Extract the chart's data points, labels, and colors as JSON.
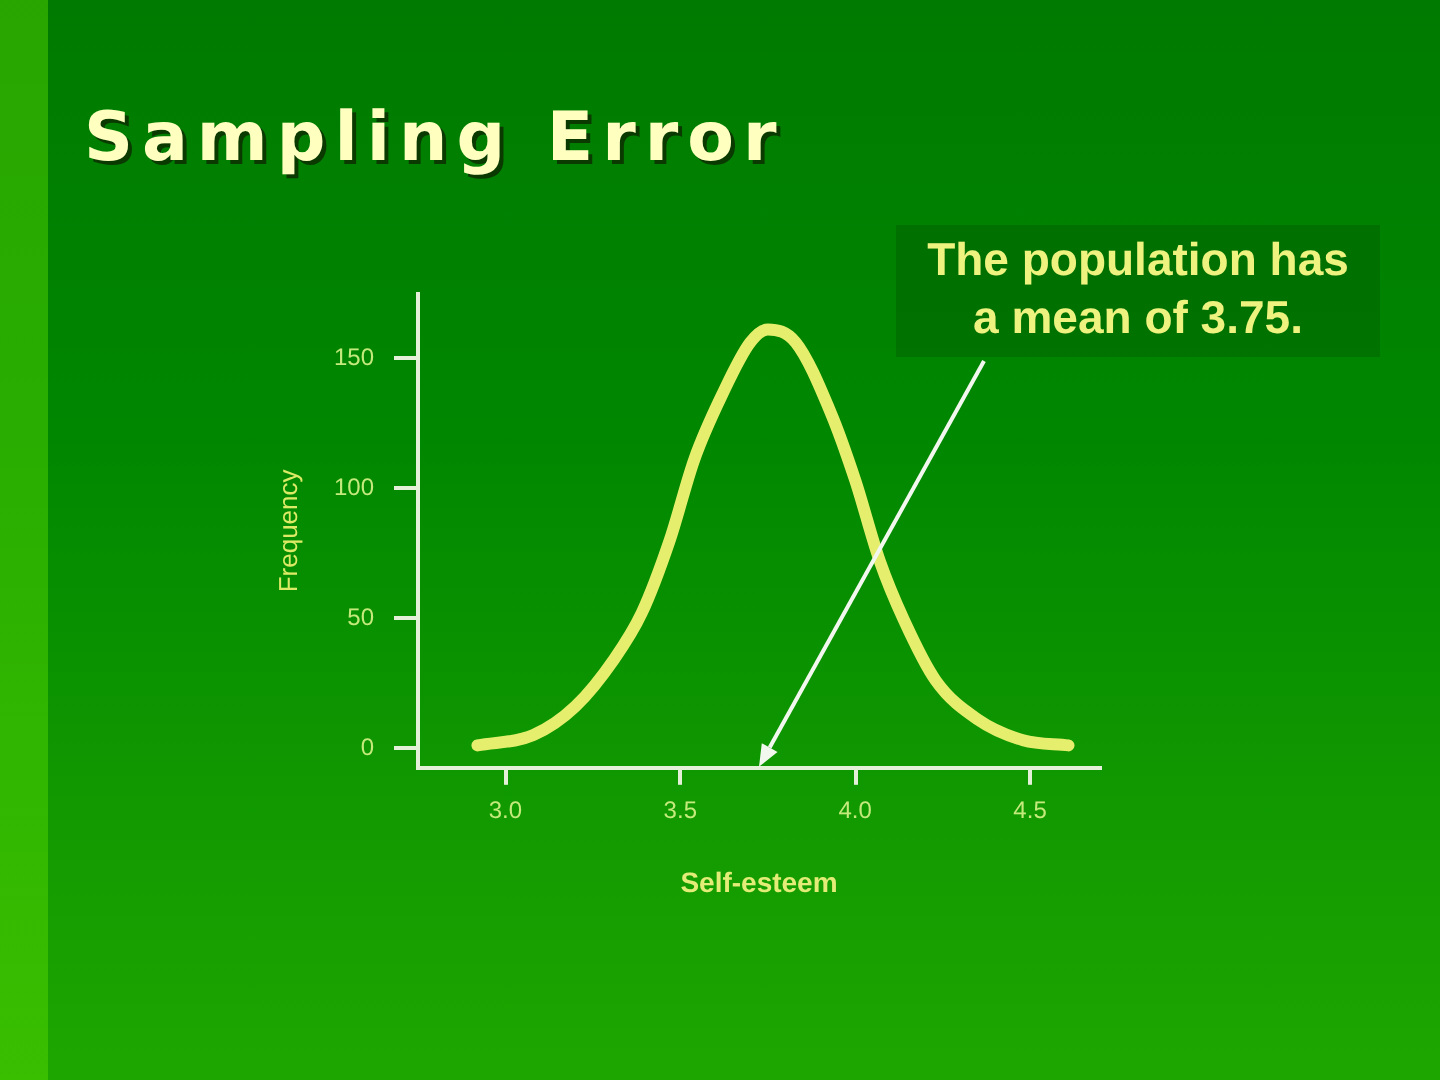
{
  "chart_data": {
    "type": "line",
    "title": "Sampling Error",
    "xlabel": "Self-esteem",
    "ylabel": "Frequency",
    "x": [
      2.92,
      3.08,
      3.2,
      3.31,
      3.39,
      3.47,
      3.54,
      3.62,
      3.7,
      3.75,
      3.83,
      3.93,
      4.0,
      4.07,
      4.14,
      4.23,
      4.35,
      4.48,
      4.61
    ],
    "series": [
      {
        "color": "#e6ee6e",
        "values": [
          1,
          5,
          16,
          34,
          52,
          80,
          111,
          136,
          156,
          161,
          156,
          129,
          103,
          72,
          49,
          26,
          11,
          3,
          1
        ]
      }
    ],
    "xlim": [
      2.75,
      4.7
    ],
    "xticks": [
      {
        "value": 3,
        "label": "3.0"
      },
      3.5,
      {
        "value": 4,
        "label": "4.0"
      },
      4.5
    ],
    "ylim": [
      -8,
      175
    ],
    "yticks": [
      0,
      50,
      100,
      150
    ],
    "grid": false,
    "legend": false,
    "marker": "none",
    "line_style": "solid",
    "annotations": [
      "The population has a mean of 3.75."
    ]
  }
}
